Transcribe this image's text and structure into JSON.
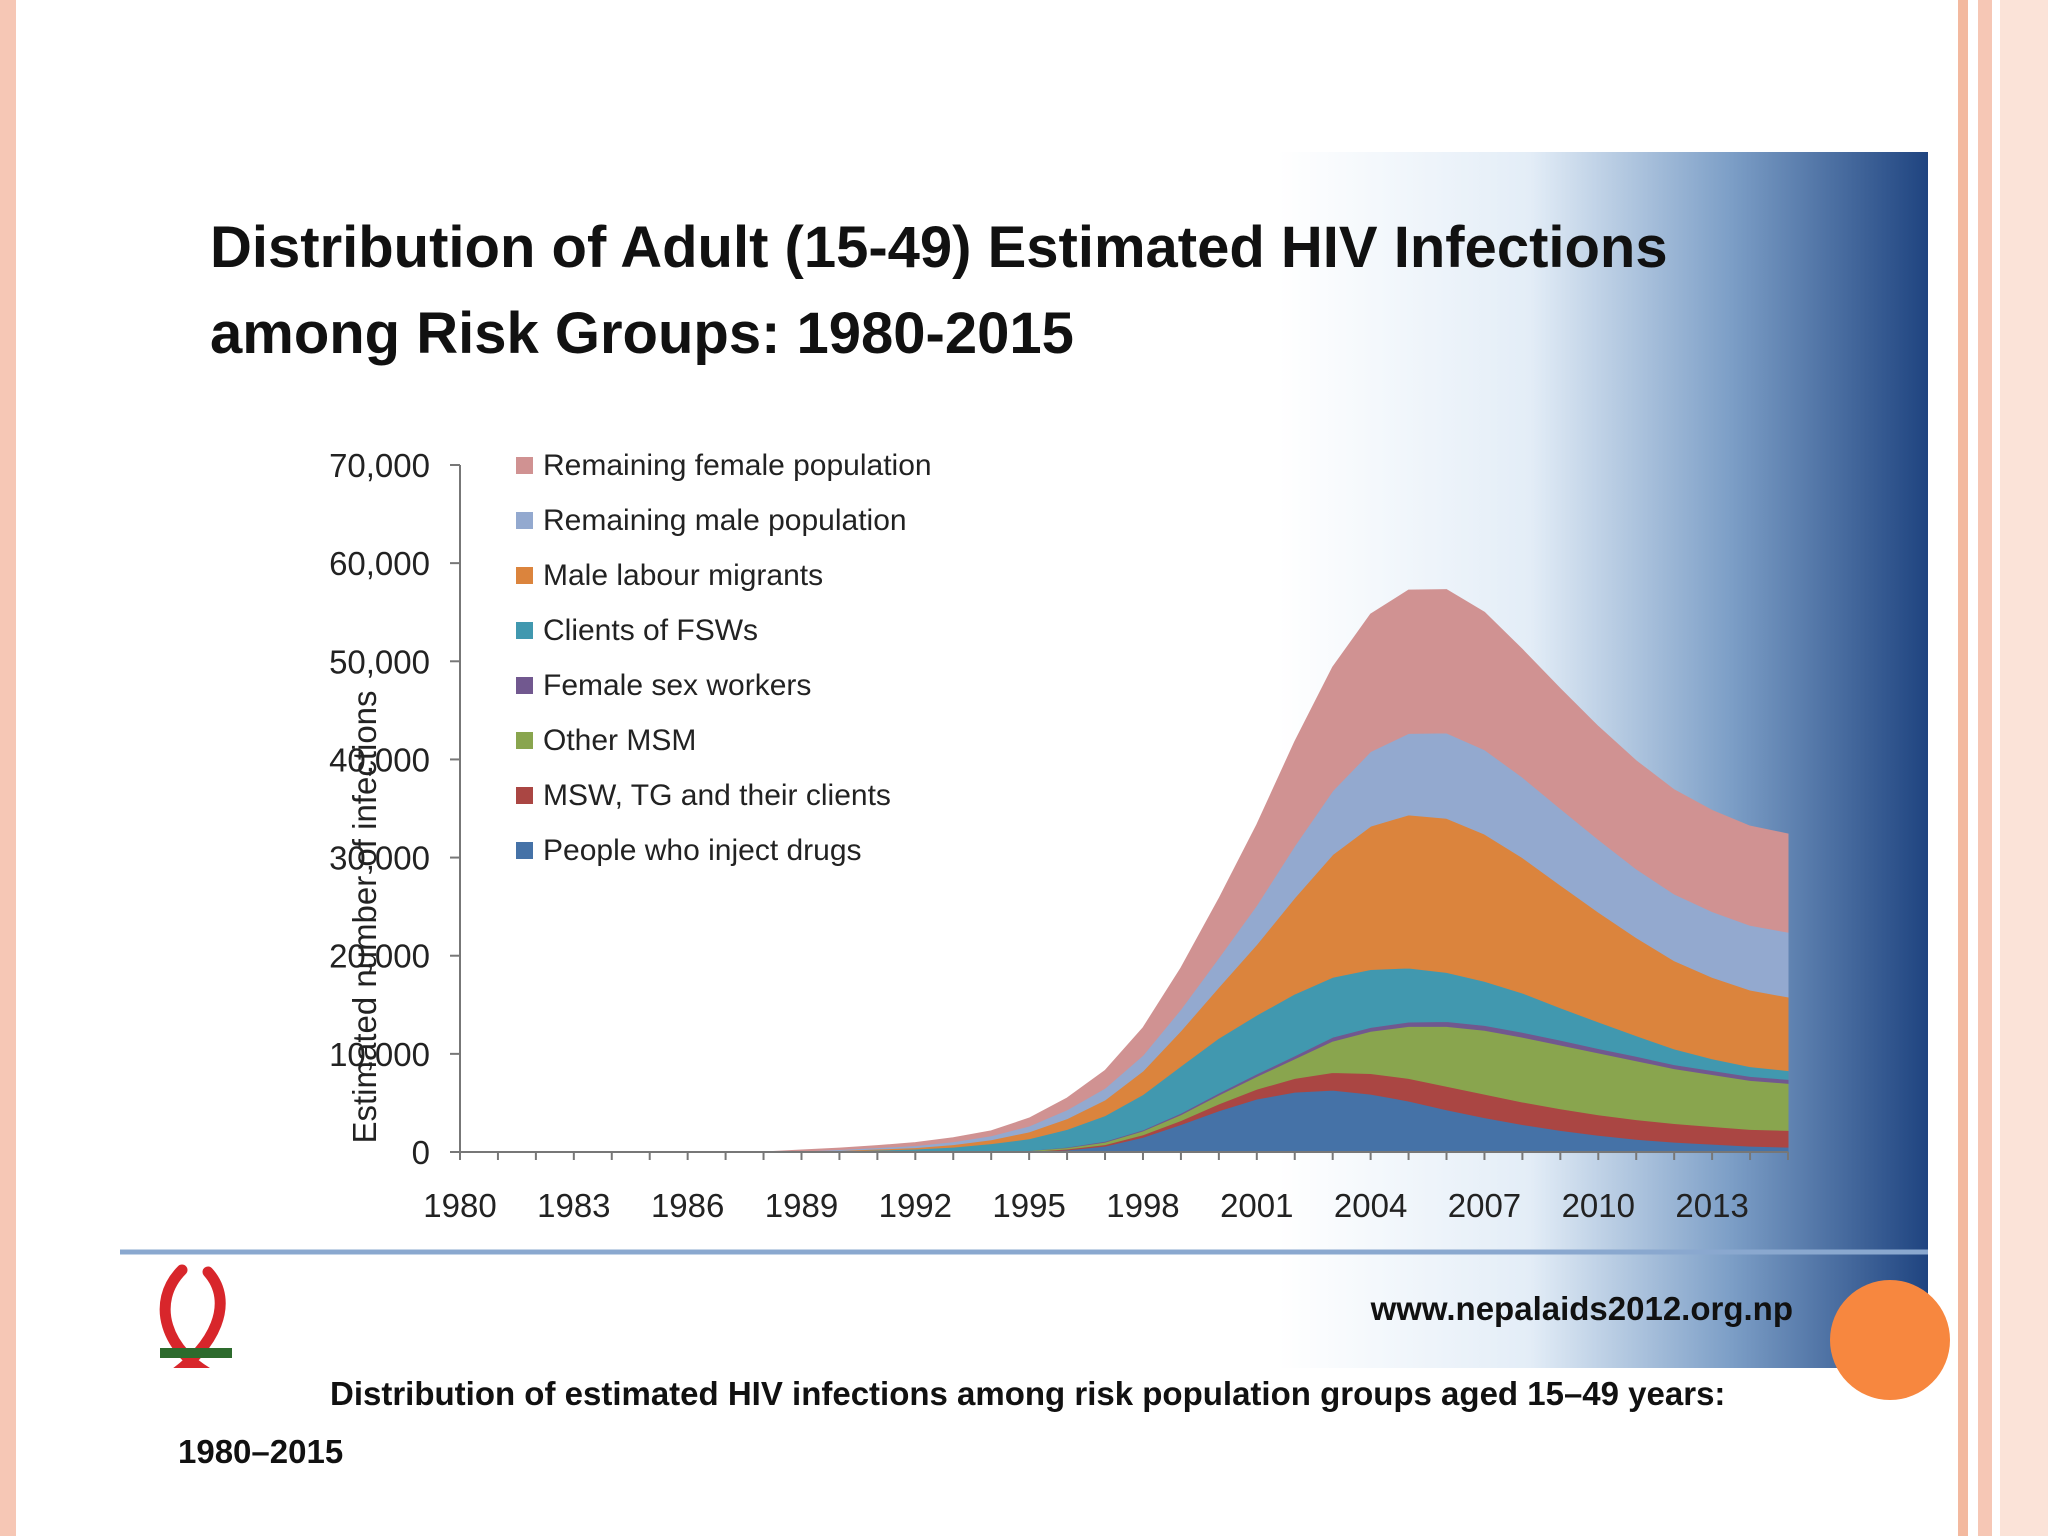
{
  "chart_data": {
    "type": "area",
    "stacked": true,
    "title_lines": [
      "Distribution of Adult (15-49) Estimated HIV Infections",
      "among Risk Groups: 1980-2015"
    ],
    "ylabel": "Estimated number of infections",
    "xlabel": "",
    "ylim": [
      0,
      70000
    ],
    "y_ticks": [
      0,
      10000,
      20000,
      30000,
      40000,
      50000,
      60000,
      70000
    ],
    "y_tick_labels": [
      "0",
      "10,000",
      "20,000",
      "30,000",
      "40,000",
      "50,000",
      "60,000",
      "70,000"
    ],
    "x_tick_labels": [
      "1980",
      "1983",
      "1986",
      "1989",
      "1992",
      "1995",
      "1998",
      "2001",
      "2004",
      "2007",
      "2010",
      "2013"
    ],
    "x": [
      1980,
      1981,
      1982,
      1983,
      1984,
      1985,
      1986,
      1987,
      1988,
      1989,
      1990,
      1991,
      1992,
      1993,
      1994,
      1995,
      1996,
      1997,
      1998,
      1999,
      2000,
      2001,
      2002,
      2003,
      2004,
      2005,
      2006,
      2007,
      2008,
      2009,
      2010,
      2011,
      2012,
      2013,
      2014,
      2015
    ],
    "legend_position": "top-left",
    "grid": false,
    "series": [
      {
        "name": "People who inject drugs",
        "color": "#4572a7",
        "values": [
          0,
          0,
          0,
          0,
          0,
          0,
          0,
          0,
          0,
          0,
          0,
          0,
          0,
          0,
          0,
          0,
          200,
          600,
          1500,
          2800,
          4200,
          5400,
          6100,
          6300,
          5900,
          5200,
          4300,
          3500,
          2800,
          2200,
          1700,
          1300,
          1000,
          800,
          600,
          500
        ]
      },
      {
        "name": "MSW, TG and their clients",
        "color": "#aa4643",
        "values": [
          0,
          0,
          0,
          0,
          0,
          0,
          0,
          0,
          0,
          0,
          0,
          0,
          0,
          0,
          0,
          50,
          100,
          150,
          250,
          400,
          700,
          1000,
          1400,
          1800,
          2100,
          2300,
          2400,
          2400,
          2300,
          2200,
          2100,
          2000,
          1900,
          1800,
          1700,
          1700
        ]
      },
      {
        "name": "Other MSM",
        "color": "#89a54e",
        "values": [
          0,
          0,
          0,
          0,
          0,
          0,
          0,
          0,
          0,
          0,
          0,
          0,
          0,
          0,
          50,
          100,
          150,
          250,
          400,
          600,
          900,
          1300,
          2000,
          3200,
          4300,
          5300,
          6100,
          6500,
          6600,
          6500,
          6300,
          6000,
          5600,
          5300,
          5000,
          4800
        ]
      },
      {
        "name": "Female sex workers",
        "color": "#71588f",
        "values": [
          0,
          0,
          0,
          0,
          0,
          0,
          0,
          0,
          0,
          0,
          0,
          0,
          0,
          0,
          0,
          0,
          50,
          100,
          100,
          150,
          200,
          250,
          300,
          400,
          400,
          450,
          500,
          500,
          500,
          500,
          450,
          450,
          400,
          400,
          400,
          400
        ]
      },
      {
        "name": "Clients of FSWs",
        "color": "#4198af",
        "values": [
          0,
          0,
          0,
          0,
          0,
          0,
          0,
          0,
          0,
          50,
          100,
          200,
          300,
          500,
          800,
          1200,
          1800,
          2600,
          3600,
          4800,
          5600,
          6000,
          6300,
          6100,
          5900,
          5500,
          5000,
          4500,
          4000,
          3300,
          2700,
          2100,
          1600,
          1200,
          1000,
          900
        ]
      },
      {
        "name": "Male labour migrants",
        "color": "#db843d",
        "values": [
          0,
          0,
          0,
          0,
          0,
          0,
          0,
          0,
          0,
          0,
          50,
          100,
          150,
          250,
          400,
          700,
          1100,
          1600,
          2400,
          3600,
          5200,
          7200,
          9800,
          12500,
          14600,
          15600,
          15700,
          15000,
          13800,
          12500,
          11200,
          10000,
          9000,
          8300,
          7800,
          7500
        ]
      },
      {
        "name": "Remaining male population",
        "color": "#93a9cf",
        "values": [
          0,
          0,
          0,
          0,
          0,
          0,
          0,
          0,
          0,
          50,
          100,
          150,
          200,
          300,
          400,
          600,
          900,
          1200,
          1600,
          2200,
          3000,
          4000,
          5300,
          6500,
          7600,
          8300,
          8700,
          8600,
          8200,
          7800,
          7400,
          7000,
          6800,
          6700,
          6600,
          6600
        ]
      },
      {
        "name": "Remaining female population",
        "color": "#d09292",
        "values": [
          0,
          0,
          0,
          0,
          0,
          0,
          0,
          0,
          0,
          100,
          150,
          200,
          300,
          400,
          500,
          800,
          1200,
          1800,
          2800,
          4200,
          6000,
          8200,
          10600,
          12600,
          14000,
          14600,
          14600,
          14000,
          13000,
          12200,
          11500,
          11000,
          10600,
          10300,
          10100,
          10000
        ]
      }
    ]
  },
  "footer": {
    "url": "www.nepalaids2012.org.np",
    "logo_icon": "red-ribbon-logo"
  },
  "caption": "Distribution of estimated HIV infections among risk population groups aged 15–49 years: 1980–2015"
}
